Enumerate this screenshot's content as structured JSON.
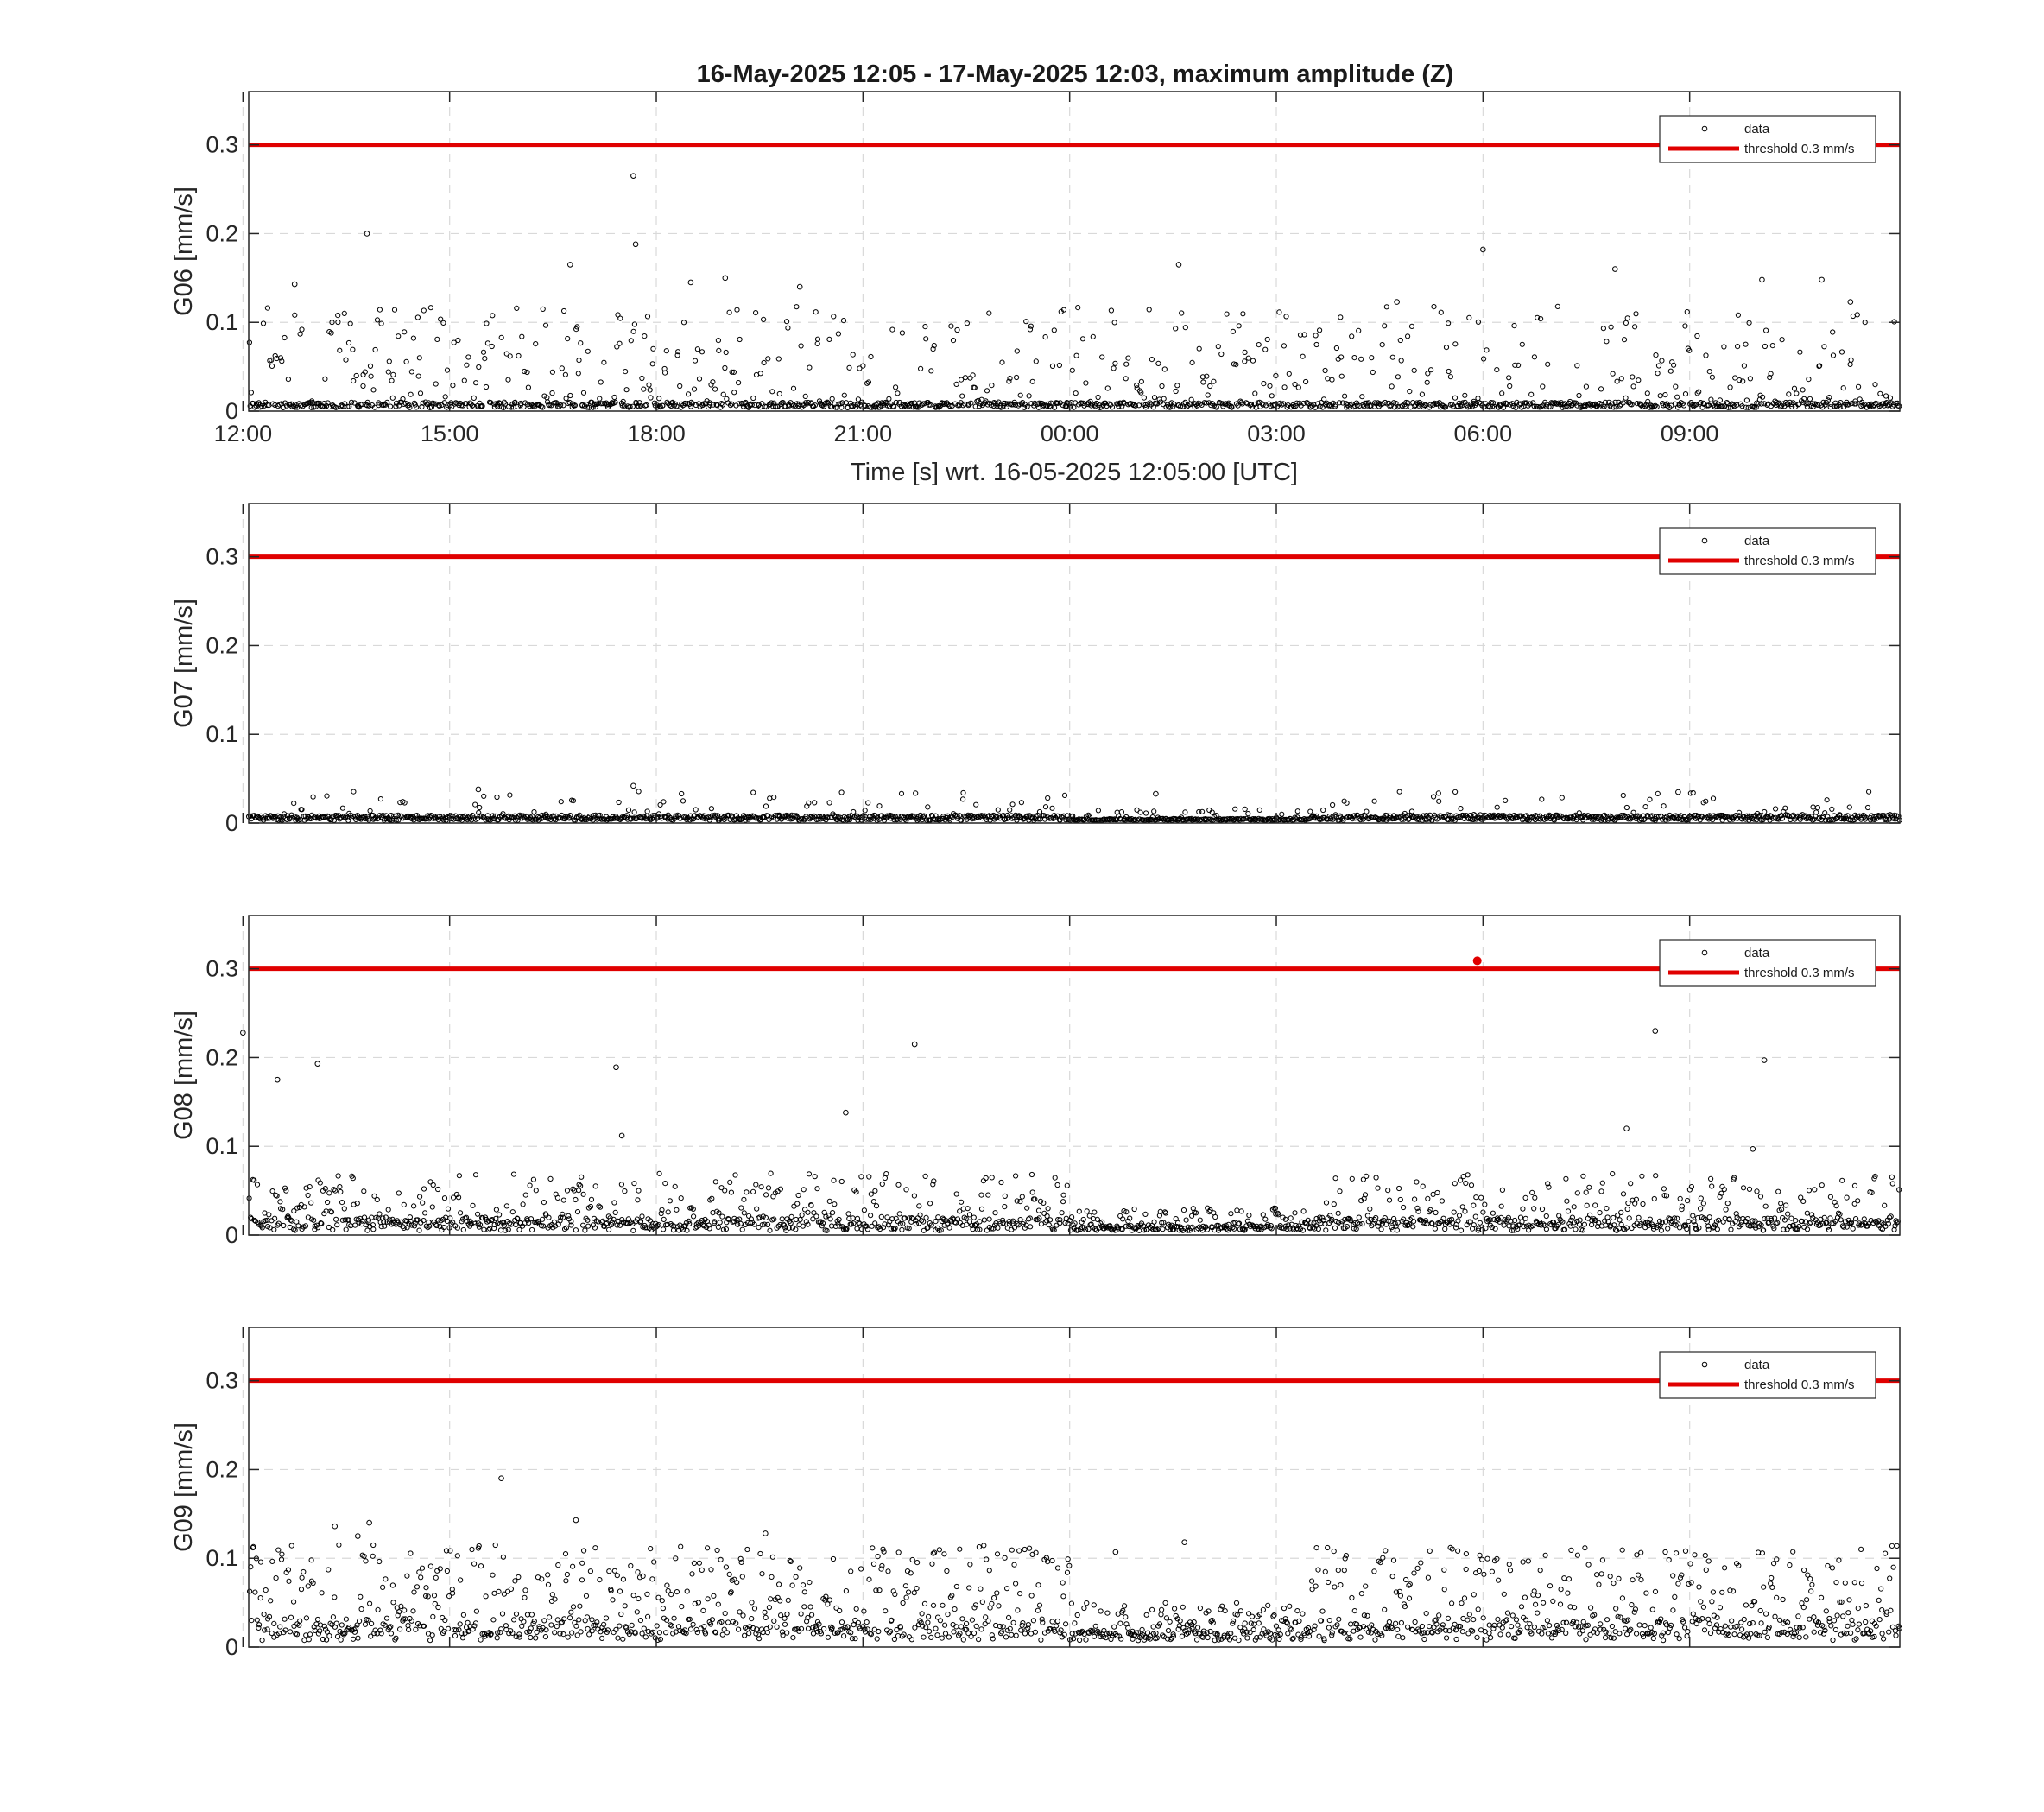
{
  "figure": {
    "title": "16-May-2025 12:05 - 17-May-2025 12:03, maximum amplitude (Z)",
    "xlabel": "Time [s] wrt. 16-05-2025 12:05:00 [UTC]",
    "colors": {
      "data": "#000000",
      "threshold": "#e00000",
      "grid": "#d9d9d9",
      "axes": "#262626"
    }
  },
  "chart_data": [
    {
      "type": "scatter",
      "ylabel": "G06 [mm/s]",
      "ylim": [
        0,
        0.36
      ],
      "yticks": [
        "0",
        "0.1",
        "0.2",
        "0.3"
      ],
      "xlim_hours": [
        12.0833,
        36.05
      ],
      "xticks": [
        "15:00",
        "18:00",
        "21:00",
        "00:00",
        "03:00",
        "06:00",
        "09:00",
        "12:00"
      ],
      "show_xticklabels": true,
      "grid": true,
      "threshold": 0.3,
      "legend": {
        "position": "top-right",
        "entries": [
          "data",
          "threshold 0.3 mm/s"
        ]
      },
      "noise": {
        "baseline": 0.008,
        "spread": 0.012,
        "scatter_max": 0.11,
        "scatter_fraction": 0.35
      },
      "outliers": [
        {
          "t": "13:48",
          "v": 0.2
        },
        {
          "t": "17:40",
          "v": 0.265
        },
        {
          "t": "17:42",
          "v": 0.188
        },
        {
          "t": "01:35",
          "v": 0.165
        },
        {
          "t": "06:00",
          "v": 0.182
        },
        {
          "t": "07:55",
          "v": 0.16
        },
        {
          "t": "19:00",
          "v": 0.15
        },
        {
          "t": "18:30",
          "v": 0.145
        },
        {
          "t": "10:03",
          "v": 0.148
        },
        {
          "t": "10:55",
          "v": 0.148
        },
        {
          "t": "12:45",
          "v": 0.143
        },
        {
          "t": "16:45",
          "v": 0.165
        },
        {
          "t": "20:05",
          "v": 0.14
        },
        {
          "t": "04:45",
          "v": 0.123
        },
        {
          "t": "11:20",
          "v": 0.123
        }
      ]
    },
    {
      "type": "scatter",
      "ylabel": "G07 [mm/s]",
      "ylim": [
        0,
        0.36
      ],
      "yticks": [
        "0",
        "0.1",
        "0.2",
        "0.3"
      ],
      "xlim_hours": [
        12.0833,
        36.05
      ],
      "xticks": [
        "15:00",
        "18:00",
        "21:00",
        "00:00",
        "03:00",
        "06:00",
        "09:00",
        "12:00"
      ],
      "show_xticklabels": false,
      "grid": true,
      "threshold": 0.3,
      "legend": {
        "position": "top-right",
        "entries": [
          "data",
          "threshold 0.3 mm/s"
        ]
      },
      "noise": {
        "baseline": 0.006,
        "spread": 0.012,
        "scatter_max": 0.03,
        "scatter_fraction": 0.15
      },
      "outliers": [
        {
          "t": "15:25",
          "v": 0.038
        },
        {
          "t": "17:40",
          "v": 0.042
        },
        {
          "t": "01:15",
          "v": 0.033
        },
        {
          "t": "08:50",
          "v": 0.035
        }
      ]
    },
    {
      "type": "scatter",
      "ylabel": "G08 [mm/s]",
      "ylim": [
        0,
        0.36
      ],
      "yticks": [
        "0",
        "0.1",
        "0.2",
        "0.3"
      ],
      "xlim_hours": [
        12.0833,
        36.05
      ],
      "xticks": [
        "15:00",
        "18:00",
        "21:00",
        "00:00",
        "03:00",
        "06:00",
        "09:00",
        "12:00"
      ],
      "show_xticklabels": false,
      "grid": true,
      "threshold": 0.3,
      "legend": {
        "position": "top-right",
        "entries": [
          "data",
          "threshold 0.3 mm/s"
        ]
      },
      "noise": {
        "baseline": 0.01,
        "spread": 0.03,
        "scatter_max": 0.06,
        "scatter_fraction": 0.45
      },
      "outliers": [
        {
          "t": "12:30",
          "v": 0.175
        },
        {
          "t": "13:05",
          "v": 0.193
        },
        {
          "t": "17:25",
          "v": 0.189
        },
        {
          "t": "17:30",
          "v": 0.112
        },
        {
          "t": "21:45",
          "v": 0.215
        },
        {
          "t": "20:45",
          "v": 0.138
        },
        {
          "t": "08:05",
          "v": 0.12
        },
        {
          "t": "08:30",
          "v": 0.23
        },
        {
          "t": "09:55",
          "v": 0.097
        },
        {
          "t": "10:05",
          "v": 0.197
        },
        {
          "t": "12:00",
          "v": 0.228
        }
      ],
      "exceedances": [
        {
          "t": "05:55",
          "v": 0.309
        }
      ]
    },
    {
      "type": "scatter",
      "ylabel": "G09 [mm/s]",
      "ylim": [
        0,
        0.36
      ],
      "yticks": [
        "0",
        "0.1",
        "0.2",
        "0.3"
      ],
      "xlim_hours": [
        12.0833,
        36.05
      ],
      "xticks": [
        "15:00",
        "18:00",
        "21:00",
        "00:00",
        "03:00",
        "06:00",
        "09:00",
        "12:00"
      ],
      "show_xticklabels": false,
      "grid": true,
      "threshold": 0.3,
      "legend": {
        "position": "top-right",
        "entries": [
          "data",
          "threshold 0.3 mm/s"
        ]
      },
      "noise": {
        "baseline": 0.015,
        "spread": 0.05,
        "scatter_max": 0.1,
        "scatter_fraction": 0.6
      },
      "outliers": [
        {
          "t": "15:45",
          "v": 0.19
        },
        {
          "t": "16:50",
          "v": 0.143
        },
        {
          "t": "13:50",
          "v": 0.14
        },
        {
          "t": "13:20",
          "v": 0.136
        },
        {
          "t": "19:35",
          "v": 0.128
        },
        {
          "t": "13:40",
          "v": 0.125
        },
        {
          "t": "01:40",
          "v": 0.118
        },
        {
          "t": "00:40",
          "v": 0.107
        }
      ]
    }
  ]
}
